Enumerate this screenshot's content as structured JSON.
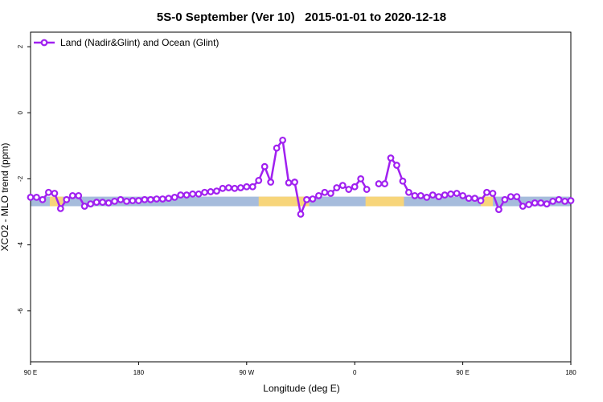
{
  "chart_data": {
    "type": "line",
    "title": "5S-0 September (Ver 10)   2015-01-01 to 2020-12-18",
    "x_label": "Longitude (deg E)",
    "y_label": "XCO2 - MLO trend (ppm)",
    "xlim": [
      90,
      540
    ],
    "ylim": [
      -7.54,
      2.44
    ],
    "xticks": [
      {
        "value": 90,
        "label": "90 E"
      },
      180,
      {
        "value": 270,
        "label": "90 W"
      },
      {
        "value": 360,
        "label": "0"
      },
      {
        "value": 450,
        "label": "90 E"
      },
      {
        "value": 540,
        "label": "180"
      }
    ],
    "yticks": [
      -6,
      -4,
      -2,
      0,
      2
    ],
    "legend": "top-left",
    "surface_band": {
      "range": [
        -2.83,
        -2.54
      ],
      "segments": [
        {
          "x": [
            90,
            540
          ],
          "color": "#a6bcdc"
        },
        {
          "x": [
            106,
            117
          ],
          "color": "#f7d57a"
        },
        {
          "x": [
            280,
            322
          ],
          "color": "#f7d57a"
        },
        {
          "x": [
            369,
            401
          ],
          "color": "#f7d57a"
        },
        {
          "x": [
            465,
            475
          ],
          "color": "#f7d57a"
        }
      ]
    },
    "x": [
      90,
      95,
      100,
      105,
      110,
      115,
      120,
      125,
      130,
      135,
      140,
      145,
      150,
      155,
      160,
      165,
      170,
      175,
      180,
      185,
      190,
      195,
      200,
      205,
      210,
      215,
      220,
      225,
      230,
      235,
      240,
      245,
      250,
      255,
      260,
      265,
      270,
      275,
      280,
      285,
      290,
      295,
      300,
      305,
      310,
      315,
      320,
      325,
      330,
      335,
      340,
      345,
      350,
      355,
      360,
      365,
      370,
      375,
      380,
      385,
      390,
      395,
      400,
      405,
      410,
      415,
      420,
      425,
      430,
      435,
      440,
      445,
      450,
      455,
      460,
      465,
      470,
      475,
      480,
      485,
      490,
      495,
      500,
      505,
      510,
      515,
      520,
      525,
      530,
      535,
      540
    ],
    "series": [
      {
        "name": "Land (Nadir&Glint) and Ocean (Glint)",
        "color": "#a020f0",
        "values": [
          -2.56,
          -2.56,
          -2.63,
          -2.41,
          -2.44,
          -2.9,
          -2.63,
          -2.51,
          -2.51,
          -2.83,
          -2.76,
          -2.71,
          -2.71,
          -2.73,
          -2.68,
          -2.63,
          -2.68,
          -2.66,
          -2.66,
          -2.63,
          -2.63,
          -2.61,
          -2.61,
          -2.59,
          -2.56,
          -2.49,
          -2.49,
          -2.46,
          -2.46,
          -2.41,
          -2.39,
          -2.37,
          -2.29,
          -2.27,
          -2.29,
          -2.27,
          -2.24,
          -2.24,
          -2.05,
          -1.63,
          -2.1,
          -1.07,
          -0.83,
          -2.12,
          -2.1,
          -3.07,
          -2.63,
          -2.61,
          -2.51,
          -2.41,
          -2.44,
          -2.27,
          -2.2,
          -2.32,
          -2.24,
          -2.0,
          -2.32,
          null,
          -2.15,
          -2.15,
          -1.37,
          -1.59,
          -2.07,
          -2.41,
          -2.51,
          -2.51,
          -2.56,
          -2.49,
          -2.54,
          -2.49,
          -2.46,
          -2.44,
          -2.51,
          -2.59,
          -2.59,
          -2.66,
          -2.41,
          -2.44,
          -2.93,
          -2.63,
          -2.54,
          -2.54,
          -2.83,
          -2.78,
          -2.73,
          -2.73,
          -2.76,
          -2.68,
          -2.63,
          -2.68,
          -2.66
        ]
      }
    ]
  }
}
